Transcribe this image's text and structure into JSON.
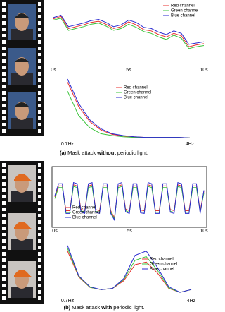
{
  "chart_data": [
    {
      "type": "line",
      "legend": "upper right",
      "x": [
        0,
        0.5,
        1,
        1.5,
        2,
        2.5,
        3,
        3.5,
        4,
        4.5,
        5,
        5.5,
        6,
        6.5,
        7,
        7.5,
        8,
        8.5,
        9,
        9.5,
        10
      ],
      "xlim": [
        0,
        10
      ],
      "ylim": [
        0,
        1
      ],
      "xticks": [
        {
          "value": 0,
          "label": "0s"
        },
        {
          "value": 5,
          "label": "5s"
        },
        {
          "value": 10,
          "label": "10s"
        }
      ],
      "series": [
        {
          "name": "Red channel",
          "color": "#e8312f",
          "values": [
            0.76,
            0.8,
            0.6,
            0.63,
            0.66,
            0.7,
            0.72,
            0.67,
            0.6,
            0.63,
            0.71,
            0.66,
            0.58,
            0.56,
            0.5,
            0.46,
            0.52,
            0.48,
            0.3,
            0.33,
            0.35
          ]
        },
        {
          "name": "Green channel",
          "color": "#3cc43c",
          "values": [
            0.74,
            0.77,
            0.57,
            0.6,
            0.63,
            0.67,
            0.69,
            0.64,
            0.57,
            0.6,
            0.67,
            0.62,
            0.55,
            0.52,
            0.46,
            0.42,
            0.49,
            0.44,
            0.27,
            0.3,
            0.32
          ]
        },
        {
          "name": "Blue channel",
          "color": "#2a2ad0",
          "values": [
            0.78,
            0.82,
            0.63,
            0.66,
            0.69,
            0.73,
            0.75,
            0.7,
            0.63,
            0.66,
            0.74,
            0.7,
            0.62,
            0.6,
            0.54,
            0.5,
            0.56,
            0.52,
            0.34,
            0.36,
            0.38
          ]
        }
      ]
    },
    {
      "type": "line",
      "legend": "upper center",
      "x": [
        0.7,
        1.0,
        1.3,
        1.6,
        1.9,
        2.2,
        2.5,
        2.8,
        3.1,
        3.4,
        3.7,
        4.0
      ],
      "xlim": [
        0.7,
        4
      ],
      "ylim": [
        0,
        1
      ],
      "xticks": [
        {
          "value": 0.7,
          "label": "0.7Hz"
        },
        {
          "value": 4,
          "label": "4Hz"
        }
      ],
      "series": [
        {
          "name": "Red channel",
          "color": "#e8312f",
          "values": [
            0.95,
            0.55,
            0.3,
            0.16,
            0.09,
            0.06,
            0.05,
            0.04,
            0.04,
            0.04,
            0.04,
            0.03
          ]
        },
        {
          "name": "Green channel",
          "color": "#3cc43c",
          "values": [
            0.8,
            0.4,
            0.2,
            0.1,
            0.07,
            0.05,
            0.04,
            0.04,
            0.04,
            0.04,
            0.04,
            0.03
          ]
        },
        {
          "name": "Blue channel",
          "color": "#2a2ad0",
          "values": [
            1,
            0.6,
            0.33,
            0.18,
            0.1,
            0.07,
            0.05,
            0.04,
            0.04,
            0.04,
            0.04,
            0.03
          ]
        }
      ]
    },
    {
      "type": "line",
      "legend": "lower left",
      "frame": true,
      "x": [
        0,
        0.25,
        0.5,
        0.75,
        1,
        1.25,
        1.5,
        1.75,
        2,
        2.25,
        2.5,
        2.75,
        3,
        3.25,
        3.5,
        3.75,
        4,
        4.25,
        4.5,
        4.75,
        5,
        5.25,
        5.5,
        5.75,
        6,
        6.25,
        6.5,
        6.75,
        7,
        7.25,
        7.5,
        7.75,
        8,
        8.25,
        8.5,
        8.75,
        9,
        9.25,
        9.5,
        9.75,
        10
      ],
      "xlim": [
        0,
        10
      ],
      "ylim": [
        0,
        1
      ],
      "xticks": [
        {
          "value": 0,
          "label": "0s"
        },
        {
          "value": 5,
          "label": "5s"
        },
        {
          "value": 10,
          "label": "10s"
        }
      ],
      "series": [
        {
          "name": "Red channel",
          "color": "#e8312f",
          "values": [
            0.5,
            0.7,
            0.7,
            0.25,
            0.25,
            0.72,
            0.7,
            0.28,
            0.25,
            0.7,
            0.72,
            0.27,
            0.25,
            0.7,
            0.7,
            0.25,
            0.12,
            0.7,
            0.72,
            0.28,
            0.25,
            0.7,
            0.7,
            0.26,
            0.25,
            0.72,
            0.7,
            0.25,
            0.25,
            0.7,
            0.7,
            0.27,
            0.25,
            0.72,
            0.7,
            0.25,
            0.25,
            0.7,
            0.7,
            0.25,
            0.6
          ]
        },
        {
          "name": "Green channel",
          "color": "#3cc43c",
          "values": [
            0.47,
            0.67,
            0.67,
            0.22,
            0.22,
            0.69,
            0.67,
            0.25,
            0.22,
            0.67,
            0.69,
            0.24,
            0.22,
            0.67,
            0.67,
            0.22,
            0.1,
            0.67,
            0.69,
            0.25,
            0.22,
            0.67,
            0.67,
            0.23,
            0.22,
            0.69,
            0.67,
            0.22,
            0.22,
            0.67,
            0.67,
            0.24,
            0.22,
            0.69,
            0.67,
            0.22,
            0.22,
            0.67,
            0.67,
            0.22,
            0.57
          ]
        },
        {
          "name": "Blue channel",
          "color": "#2a2ad0",
          "values": [
            0.52,
            0.74,
            0.74,
            0.2,
            0.2,
            0.76,
            0.74,
            0.23,
            0.2,
            0.74,
            0.76,
            0.22,
            0.2,
            0.74,
            0.74,
            0.2,
            0.08,
            0.74,
            0.76,
            0.23,
            0.2,
            0.74,
            0.74,
            0.21,
            0.2,
            0.76,
            0.74,
            0.2,
            0.2,
            0.74,
            0.74,
            0.22,
            0.2,
            0.76,
            0.74,
            0.2,
            0.2,
            0.74,
            0.74,
            0.2,
            0.62
          ]
        }
      ]
    },
    {
      "type": "line",
      "legend": "center right",
      "x": [
        0.7,
        1.0,
        1.3,
        1.6,
        1.9,
        2.2,
        2.5,
        2.8,
        3.1,
        3.4,
        3.7,
        4.0
      ],
      "xlim": [
        0.7,
        4
      ],
      "ylim": [
        0,
        1
      ],
      "xticks": [
        {
          "value": 0.7,
          "label": "0.7Hz"
        },
        {
          "value": 4,
          "label": "4Hz"
        }
      ],
      "series": [
        {
          "name": "Red channel",
          "color": "#e8312f",
          "values": [
            0.8,
            0.33,
            0.14,
            0.1,
            0.12,
            0.26,
            0.55,
            0.6,
            0.4,
            0.12,
            0.05,
            0.1
          ]
        },
        {
          "name": "Green channel",
          "color": "#3cc43c",
          "values": [
            0.85,
            0.34,
            0.14,
            0.1,
            0.12,
            0.28,
            0.63,
            0.7,
            0.45,
            0.13,
            0.05,
            0.1
          ]
        },
        {
          "name": "Blue channel",
          "color": "#2a2ad0",
          "values": [
            0.9,
            0.35,
            0.15,
            0.1,
            0.12,
            0.3,
            0.72,
            0.8,
            0.5,
            0.15,
            0.05,
            0.1
          ]
        }
      ]
    }
  ],
  "captions": [
    {
      "label": "(a)",
      "before": "Mask attack",
      "emphasis": "without",
      "after": "periodic light."
    },
    {
      "label": "(b)",
      "before": "Mask attack",
      "emphasis": "with",
      "after": "periodic light."
    }
  ]
}
